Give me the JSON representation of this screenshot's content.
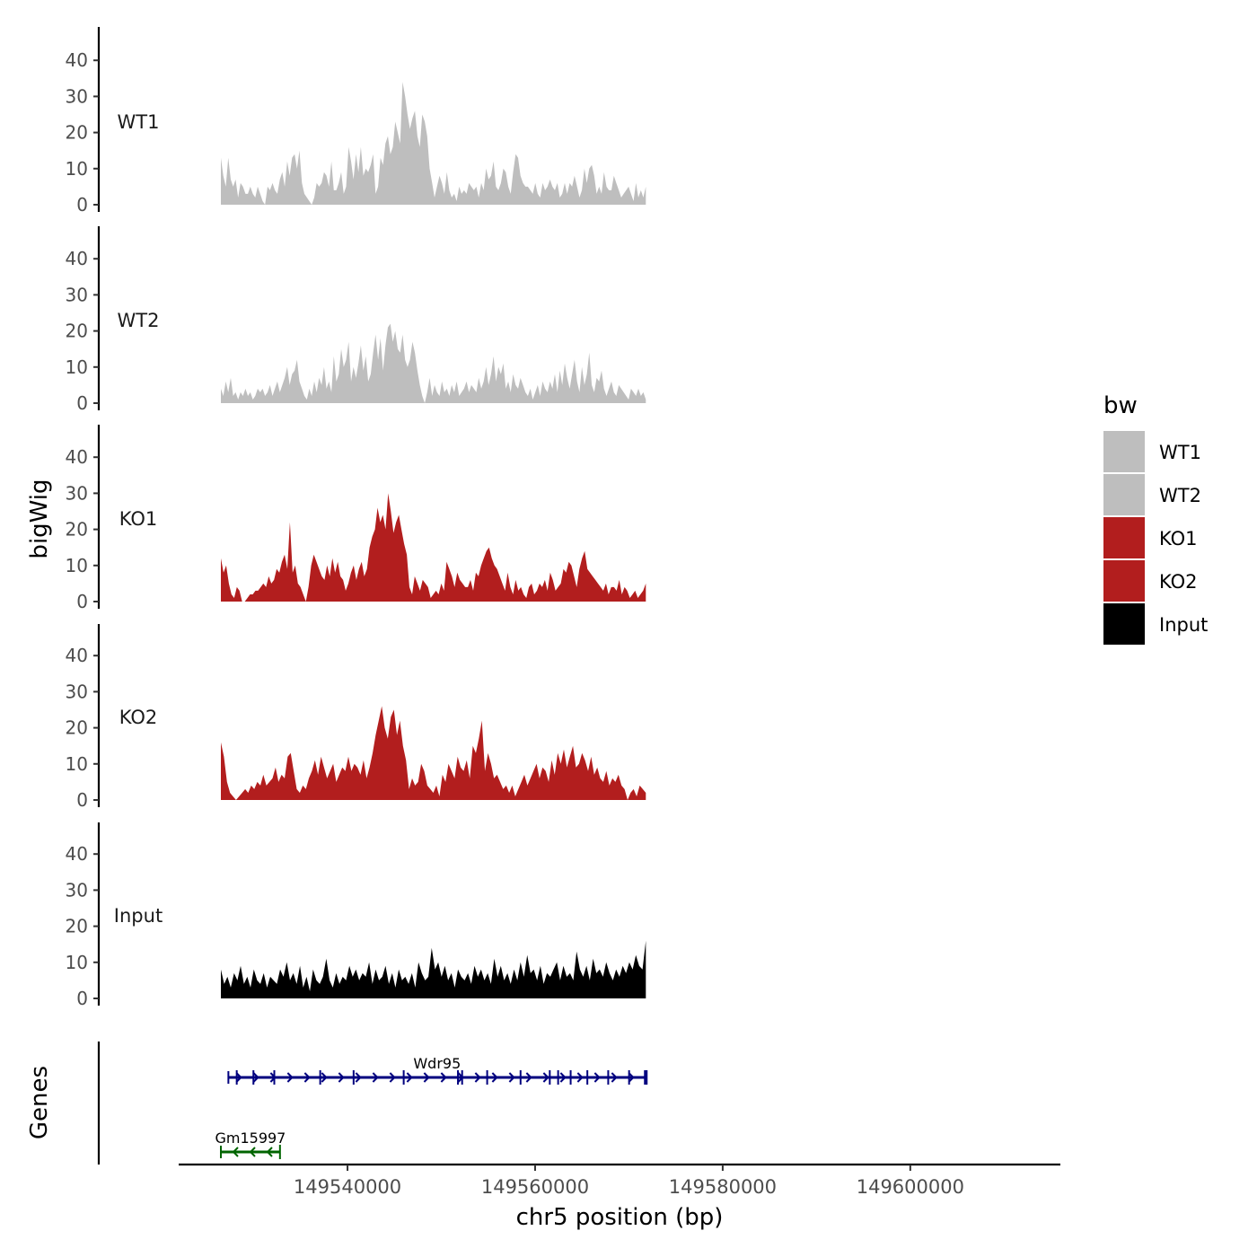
{
  "chart_data": {
    "type": "area",
    "title": "",
    "ylabel": "bigWig",
    "genes_label": "Genes",
    "xlabel": "chr5 position (bp)",
    "xlim": [
      149522000,
      149616000
    ],
    "region": [
      149526500,
      149571800
    ],
    "ylim": [
      0,
      48
    ],
    "y_ticks": [
      0,
      10,
      20,
      30,
      40
    ],
    "x_ticks": [
      149540000,
      149560000,
      149580000,
      149600000
    ],
    "x_tick_labels": [
      "149540000",
      "149560000",
      "149580000",
      "149600000"
    ],
    "legend": {
      "title": "bw",
      "position": "right",
      "entries": [
        {
          "label": "WT1",
          "color": "#bebebe"
        },
        {
          "label": "WT2",
          "color": "#bebebe"
        },
        {
          "label": "KO1",
          "color": "#b21e1e"
        },
        {
          "label": "KO2",
          "color": "#b21e1e"
        },
        {
          "label": "Input",
          "color": "#000000"
        }
      ]
    },
    "series": [
      {
        "name": "WT1",
        "color": "#bebebe",
        "values": [
          13,
          8,
          5,
          13,
          7,
          5,
          7,
          2,
          6,
          5,
          3,
          3,
          5,
          3,
          2,
          5,
          3,
          1,
          0,
          5,
          4,
          6,
          4,
          3,
          7,
          9,
          5,
          12,
          8,
          13,
          14,
          10,
          15,
          6,
          3,
          2,
          1,
          0,
          2,
          6,
          5,
          6,
          9,
          8,
          5,
          12,
          4,
          4,
          6,
          9,
          3,
          5,
          16,
          12,
          7,
          14,
          9,
          16,
          8,
          10,
          9,
          11,
          14,
          3,
          5,
          13,
          11,
          17,
          19,
          14,
          16,
          23,
          20,
          17,
          34,
          30,
          25,
          21,
          24,
          26,
          19,
          16,
          25,
          23,
          19,
          10,
          6,
          2,
          5,
          8,
          6,
          3,
          9,
          4,
          2,
          3,
          1,
          5,
          3,
          4,
          3,
          6,
          5,
          4,
          5,
          2,
          6,
          4,
          10,
          7,
          8,
          12,
          5,
          4,
          6,
          10,
          9,
          5,
          3,
          9,
          14,
          13,
          8,
          6,
          5,
          5,
          4,
          3,
          6,
          3,
          2,
          6,
          4,
          5,
          7,
          5,
          4,
          6,
          2,
          3,
          6,
          3,
          6,
          5,
          8,
          5,
          2,
          4,
          10,
          6,
          10,
          11,
          8,
          3,
          5,
          3,
          9,
          5,
          4,
          4,
          8,
          6,
          4,
          2,
          3,
          4,
          5,
          3,
          1,
          6,
          2,
          4,
          2,
          5
        ]
      },
      {
        "name": "WT2",
        "color": "#bebebe",
        "values": [
          4,
          2,
          6,
          3,
          7,
          2,
          3,
          1,
          3,
          2,
          4,
          2,
          3,
          1,
          2,
          4,
          3,
          4,
          2,
          3,
          5,
          2,
          4,
          6,
          3,
          5,
          7,
          10,
          5,
          8,
          9,
          12,
          6,
          4,
          2,
          1,
          4,
          2,
          6,
          3,
          7,
          5,
          10,
          4,
          6,
          3,
          13,
          6,
          8,
          15,
          10,
          12,
          17,
          6,
          10,
          7,
          11,
          16,
          9,
          13,
          6,
          8,
          14,
          19,
          12,
          18,
          9,
          16,
          21,
          22,
          17,
          20,
          15,
          14,
          19,
          12,
          10,
          12,
          17,
          14,
          9,
          5,
          2,
          0,
          3,
          7,
          2,
          5,
          3,
          2,
          6,
          3,
          4,
          2,
          5,
          3,
          6,
          2,
          3,
          4,
          6,
          3,
          5,
          4,
          3,
          7,
          4,
          6,
          10,
          5,
          8,
          13,
          6,
          10,
          8,
          11,
          4,
          6,
          3,
          8,
          5,
          4,
          7,
          5,
          3,
          2,
          4,
          1,
          3,
          5,
          2,
          6,
          4,
          3,
          6,
          4,
          8,
          3,
          9,
          5,
          11,
          7,
          4,
          8,
          12,
          6,
          3,
          10,
          5,
          8,
          14,
          5,
          3,
          7,
          6,
          9,
          4,
          2,
          4,
          6,
          3,
          2,
          5,
          4,
          3,
          2,
          1,
          4,
          3,
          2,
          4,
          2,
          3,
          1
        ]
      },
      {
        "name": "KO1",
        "color": "#b21e1e",
        "values": [
          12,
          8,
          10,
          5,
          2,
          1,
          4,
          3,
          0,
          0,
          1,
          2,
          2,
          3,
          3,
          4,
          5,
          4,
          7,
          5,
          6,
          9,
          8,
          11,
          13,
          9,
          22,
          8,
          10,
          5,
          4,
          2,
          0,
          4,
          10,
          13,
          11,
          9,
          7,
          6,
          10,
          7,
          12,
          8,
          11,
          7,
          6,
          3,
          5,
          8,
          10,
          6,
          9,
          11,
          7,
          9,
          15,
          18,
          20,
          26,
          22,
          24,
          20,
          30,
          25,
          19,
          22,
          24,
          20,
          16,
          13,
          4,
          2,
          7,
          5,
          3,
          6,
          5,
          4,
          1,
          2,
          3,
          2,
          5,
          3,
          11,
          9,
          7,
          4,
          8,
          6,
          5,
          4,
          4,
          6,
          3,
          8,
          7,
          10,
          12,
          14,
          15,
          12,
          10,
          9,
          7,
          5,
          3,
          8,
          4,
          2,
          6,
          3,
          4,
          2,
          1,
          4,
          5,
          2,
          3,
          5,
          4,
          6,
          3,
          8,
          6,
          3,
          4,
          5,
          9,
          8,
          11,
          10,
          7,
          4,
          9,
          12,
          14,
          9,
          8,
          7,
          6,
          5,
          4,
          3,
          5,
          2,
          4,
          4,
          3,
          6,
          2,
          4,
          3,
          1,
          2,
          3,
          1,
          2,
          3,
          5
        ]
      },
      {
        "name": "KO2",
        "color": "#b21e1e",
        "values": [
          16,
          12,
          5,
          2,
          1,
          0,
          1,
          2,
          3,
          2,
          4,
          3,
          5,
          4,
          7,
          4,
          5,
          6,
          9,
          5,
          7,
          6,
          12,
          13,
          8,
          3,
          2,
          4,
          3,
          6,
          8,
          11,
          7,
          12,
          9,
          6,
          8,
          10,
          5,
          7,
          9,
          8,
          12,
          8,
          10,
          9,
          7,
          11,
          6,
          9,
          13,
          18,
          22,
          26,
          20,
          17,
          23,
          25,
          18,
          22,
          15,
          11,
          3,
          6,
          4,
          5,
          10,
          8,
          4,
          3,
          2,
          4,
          1,
          7,
          5,
          10,
          8,
          6,
          12,
          9,
          8,
          11,
          6,
          15,
          13,
          17,
          22,
          8,
          13,
          10,
          6,
          7,
          5,
          3,
          4,
          2,
          4,
          1,
          3,
          5,
          7,
          4,
          6,
          8,
          10,
          6,
          9,
          8,
          5,
          11,
          7,
          13,
          10,
          14,
          9,
          12,
          15,
          9,
          10,
          13,
          11,
          8,
          12,
          7,
          9,
          6,
          5,
          8,
          4,
          6,
          5,
          7,
          4,
          3,
          0,
          2,
          3,
          1,
          4,
          3,
          2
        ]
      },
      {
        "name": "Input",
        "color": "#000000",
        "values": [
          8,
          4,
          6,
          3,
          7,
          5,
          9,
          4,
          6,
          3,
          8,
          5,
          4,
          7,
          3,
          6,
          5,
          4,
          8,
          6,
          10,
          5,
          7,
          4,
          9,
          3,
          6,
          2,
          8,
          5,
          4,
          6,
          11,
          5,
          3,
          7,
          4,
          6,
          5,
          9,
          6,
          8,
          5,
          7,
          6,
          10,
          4,
          8,
          5,
          6,
          9,
          4,
          7,
          3,
          8,
          5,
          6,
          4,
          7,
          3,
          10,
          7,
          5,
          6,
          14,
          8,
          10,
          6,
          9,
          5,
          7,
          3,
          8,
          6,
          5,
          7,
          4,
          9,
          6,
          8,
          5,
          7,
          4,
          11,
          6,
          9,
          5,
          7,
          4,
          8,
          5,
          10,
          6,
          12,
          7,
          8,
          5,
          9,
          4,
          7,
          6,
          8,
          10,
          5,
          9,
          6,
          7,
          5,
          13,
          8,
          6,
          9,
          5,
          11,
          7,
          8,
          6,
          10,
          7,
          5,
          8,
          6,
          9,
          7,
          10,
          8,
          12,
          9,
          8,
          16
        ]
      }
    ],
    "genes": [
      {
        "name": "Wdr95",
        "strand": "+",
        "start": 149527300,
        "end": 149571800,
        "color": "#00007f"
      },
      {
        "name": "Gm15997",
        "strand": "-",
        "start": 149526500,
        "end": 149532800,
        "color": "#006400"
      }
    ]
  }
}
